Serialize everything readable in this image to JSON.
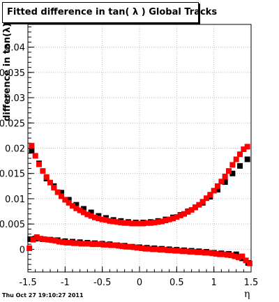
{
  "title": "Fitted difference in tan( λ )  Global Tracks",
  "timestamp": "Thu Oct 27 19:10:27 2011",
  "colors": {
    "series_black": "#000000",
    "series_red": "#ff0000",
    "grid": "#bbbbbb"
  },
  "chart_data": {
    "type": "scatter",
    "title": "Fitted difference in tan( λ )  Global Tracks",
    "xlabel": "η",
    "ylabel": "difference in tan(λ)",
    "xlim": [
      -1.5,
      1.5
    ],
    "ylim": [
      -0.0045,
      0.0445
    ],
    "grid": true,
    "legend": "none",
    "x_ticks": [
      -1.5,
      -1,
      -0.5,
      0,
      0.5,
      1,
      1.5
    ],
    "x_tick_labels": [
      "-1.5",
      "-1",
      "-0.5",
      "0",
      "0.5",
      "1",
      "1.5"
    ],
    "y_ticks": [
      0,
      0.005,
      0.01,
      0.015,
      0.02,
      0.025,
      0.03,
      0.035,
      0.04
    ],
    "y_tick_labels": [
      "0",
      "0.005",
      "0.01",
      "0.015",
      "0.02",
      "0.025",
      "0.03",
      "0.035",
      "0.04"
    ],
    "series": [
      {
        "color": "#000000",
        "x": [
          -1.45,
          -1.35,
          -1.25,
          -1.15,
          -1.05,
          -0.95,
          -0.85,
          -0.75,
          -0.65,
          -0.55,
          -0.45,
          -0.35,
          -0.25,
          -0.15,
          -0.05,
          0.05,
          0.15,
          0.25,
          0.35,
          0.45,
          0.55,
          0.65,
          0.75,
          0.85,
          0.95,
          1.05,
          1.15,
          1.25,
          1.35,
          1.45
        ],
        "y": [
          0.0195,
          0.017,
          0.014,
          0.0125,
          0.0112,
          0.0098,
          0.0088,
          0.008,
          0.0073,
          0.0066,
          0.0062,
          0.0058,
          0.0056,
          0.0054,
          0.0053,
          0.0053,
          0.0054,
          0.0056,
          0.0059,
          0.0063,
          0.0068,
          0.0075,
          0.0083,
          0.0092,
          0.0104,
          0.0118,
          0.0133,
          0.015,
          0.0165,
          0.0178
        ]
      },
      {
        "color": "#ff0000",
        "x": [
          -1.45,
          -1.4,
          -1.35,
          -1.3,
          -1.25,
          -1.2,
          -1.15,
          -1.1,
          -1.05,
          -1.0,
          -0.95,
          -0.9,
          -0.85,
          -0.8,
          -0.75,
          -0.7,
          -0.65,
          -0.6,
          -0.55,
          -0.5,
          -0.45,
          -0.4,
          -0.35,
          -0.3,
          -0.25,
          -0.2,
          -0.15,
          -0.1,
          -0.05,
          0.0,
          0.05,
          0.1,
          0.15,
          0.2,
          0.25,
          0.3,
          0.35,
          0.4,
          0.45,
          0.5,
          0.55,
          0.6,
          0.65,
          0.7,
          0.75,
          0.8,
          0.85,
          0.9,
          0.95,
          1.0,
          1.05,
          1.1,
          1.15,
          1.2,
          1.25,
          1.3,
          1.35,
          1.4,
          1.45
        ],
        "y": [
          0.0205,
          0.0185,
          0.0168,
          0.0155,
          0.0143,
          0.0132,
          0.0122,
          0.0113,
          0.0105,
          0.0098,
          0.0092,
          0.0086,
          0.0081,
          0.0077,
          0.0073,
          0.0069,
          0.0066,
          0.0063,
          0.0061,
          0.0059,
          0.0058,
          0.0056,
          0.0055,
          0.0054,
          0.0053,
          0.0052,
          0.0052,
          0.0051,
          0.0051,
          0.0051,
          0.0051,
          0.0052,
          0.0052,
          0.0053,
          0.0054,
          0.0055,
          0.0057,
          0.0059,
          0.0061,
          0.0064,
          0.0067,
          0.007,
          0.0074,
          0.0078,
          0.0083,
          0.0088,
          0.0094,
          0.0101,
          0.0108,
          0.0116,
          0.0125,
          0.0134,
          0.0144,
          0.0155,
          0.0167,
          0.0178,
          0.0188,
          0.0198,
          0.0203
        ]
      },
      {
        "color": "#000000",
        "x": [
          -1.47,
          -1.4,
          -1.3,
          -1.2,
          -1.1,
          -1.0,
          -0.9,
          -0.8,
          -0.7,
          -0.6,
          -0.5,
          -0.4,
          -0.3,
          -0.2,
          -0.1,
          0.0,
          0.1,
          0.2,
          0.3,
          0.4,
          0.5,
          0.6,
          0.7,
          0.8,
          0.9,
          1.0,
          1.1,
          1.2,
          1.3,
          1.38,
          1.46
        ],
        "y": [
          0.002,
          0.0021,
          0.002,
          0.0019,
          0.0018,
          0.0016,
          0.0015,
          0.0014,
          0.0013,
          0.0012,
          0.0011,
          0.001,
          0.0008,
          0.0007,
          0.0005,
          0.0004,
          0.0003,
          0.0002,
          0.0001,
          0.0,
          -0.0001,
          -0.0002,
          -0.0003,
          -0.0004,
          -0.0005,
          -0.0007,
          -0.0008,
          -0.0009,
          -0.001,
          -0.0018,
          -0.0027
        ]
      },
      {
        "color": "#ff0000",
        "x": [
          -1.48,
          -1.43,
          -1.38,
          -1.33,
          -1.28,
          -1.23,
          -1.18,
          -1.13,
          -1.08,
          -1.03,
          -0.98,
          -0.93,
          -0.88,
          -0.83,
          -0.78,
          -0.73,
          -0.68,
          -0.63,
          -0.58,
          -0.53,
          -0.48,
          -0.43,
          -0.38,
          -0.33,
          -0.28,
          -0.23,
          -0.18,
          -0.13,
          -0.08,
          -0.03,
          0.03,
          0.08,
          0.13,
          0.18,
          0.23,
          0.28,
          0.33,
          0.38,
          0.43,
          0.48,
          0.53,
          0.58,
          0.63,
          0.68,
          0.73,
          0.78,
          0.83,
          0.88,
          0.93,
          0.98,
          1.03,
          1.08,
          1.13,
          1.18,
          1.23,
          1.28,
          1.33,
          1.38,
          1.43,
          1.48
        ],
        "y": [
          0.0002,
          0.0019,
          0.0024,
          0.0021,
          0.002,
          0.0019,
          0.0018,
          0.0017,
          0.0015,
          0.0014,
          0.0013,
          0.0013,
          0.0012,
          0.0012,
          0.0011,
          0.0011,
          0.0011,
          0.001,
          0.001,
          0.001,
          0.0009,
          0.0009,
          0.0008,
          0.0008,
          0.0007,
          0.0006,
          0.0005,
          0.0005,
          0.0004,
          0.0003,
          0.0002,
          0.0001,
          0.0001,
          0.0,
          0.0,
          -0.0001,
          -0.0001,
          -0.0002,
          -0.0002,
          -0.0003,
          -0.0003,
          -0.0004,
          -0.0004,
          -0.0005,
          -0.0005,
          -0.0006,
          -0.0006,
          -0.0007,
          -0.0007,
          -0.0008,
          -0.0009,
          -0.001,
          -0.001,
          -0.0011,
          -0.0012,
          -0.0014,
          -0.0016,
          -0.0014,
          -0.0022,
          -0.0028
        ]
      }
    ]
  }
}
